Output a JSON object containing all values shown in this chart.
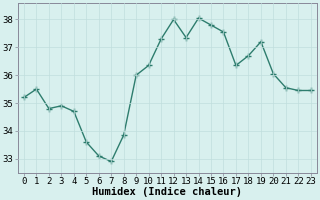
{
  "x": [
    0,
    1,
    2,
    3,
    4,
    5,
    6,
    7,
    8,
    9,
    10,
    11,
    12,
    13,
    14,
    15,
    16,
    17,
    18,
    19,
    20,
    21,
    22,
    23
  ],
  "y": [
    35.2,
    35.5,
    34.8,
    34.9,
    34.7,
    33.6,
    33.1,
    32.9,
    33.85,
    36.0,
    36.35,
    37.3,
    38.0,
    37.35,
    38.05,
    37.8,
    37.55,
    36.35,
    36.7,
    37.2,
    36.05,
    35.55,
    35.45,
    35.45
  ],
  "line_color": "#2e7d6e",
  "marker": "+",
  "marker_size": 4,
  "marker_lw": 1.0,
  "bg_color": "#d8f0ee",
  "grid_color": "#c0dedd",
  "xlabel": "Humidex (Indice chaleur)",
  "xlim": [
    -0.5,
    23.5
  ],
  "ylim": [
    32.5,
    38.6
  ],
  "yticks": [
    33,
    34,
    35,
    36,
    37,
    38
  ],
  "xticks": [
    0,
    1,
    2,
    3,
    4,
    5,
    6,
    7,
    8,
    9,
    10,
    11,
    12,
    13,
    14,
    15,
    16,
    17,
    18,
    19,
    20,
    21,
    22,
    23
  ],
  "tick_label_fontsize": 6.5,
  "xlabel_fontsize": 7.5,
  "spine_color": "#888899",
  "line_width": 1.0
}
